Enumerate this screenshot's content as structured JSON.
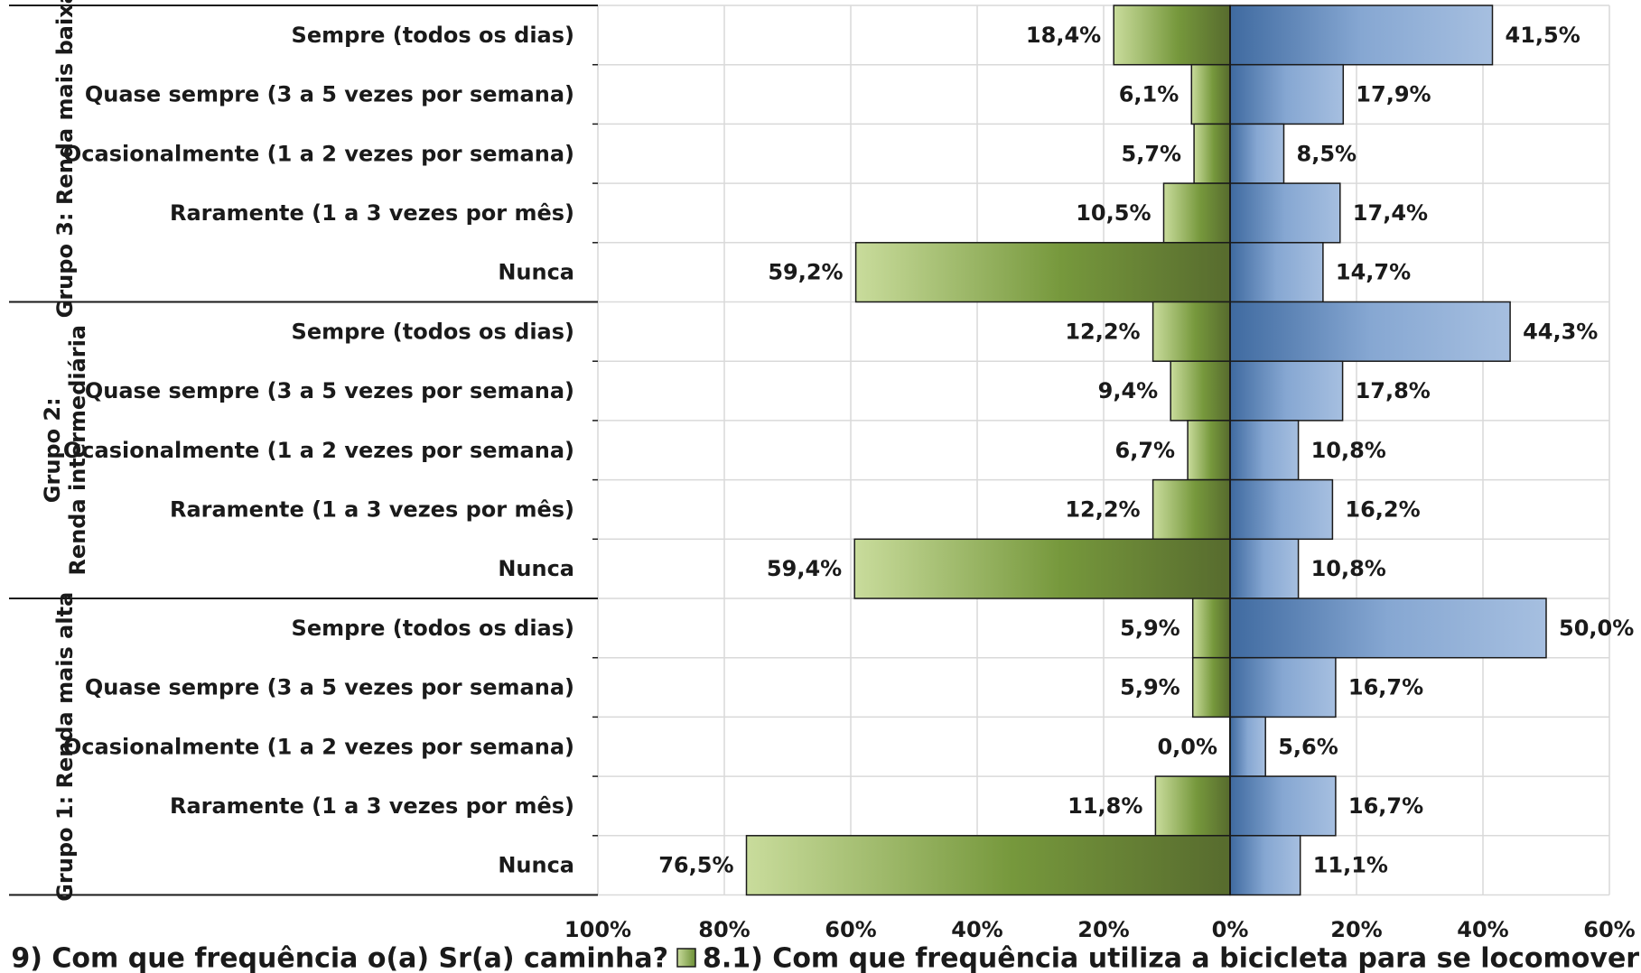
{
  "chart_data": {
    "type": "bar",
    "orientation": "horizontal-diverging",
    "xlim": [
      -100,
      60
    ],
    "grid": true,
    "legend_placement": "bottom",
    "x_ticks": [
      "100%",
      "80%",
      "60%",
      "40%",
      "20%",
      "0%",
      "20%",
      "40%",
      "60%"
    ],
    "groups": [
      {
        "label": "Grupo 3: Renda mais baixa",
        "categories": [
          "Sempre (todos os dias)",
          "Quase sempre (3 a 5 vezes por semana)",
          "Ocasionalmente (1 a 2 vezes por semana)",
          "Raramente (1 a 3 vezes por mês)",
          "Nunca"
        ]
      },
      {
        "label": "Grupo 2: Renda intermediária",
        "categories": [
          "Sempre (todos os dias)",
          "Quase sempre (3 a 5 vezes por semana)",
          "Ocasionalmente (1 a 2 vezes por semana)",
          "Raramente (1 a 3 vezes por mês)",
          "Nunca"
        ]
      },
      {
        "label": "Grupo 1: Renda mais alta",
        "categories": [
          "Sempre (todos os dias)",
          "Quase sempre (3 a 5 vezes por semana)",
          "Ocasionalmente (1 a 2 vezes por semana)",
          "Raramente (1 a 3 vezes por mês)",
          "Nunca"
        ]
      }
    ],
    "series": [
      {
        "name": "9) Com que frequência o(a) Sr(a) caminha?",
        "side": "left",
        "color": "#6b8e35",
        "values": [
          18.4,
          6.1,
          5.7,
          10.5,
          59.2,
          12.2,
          9.4,
          6.7,
          12.2,
          59.4,
          5.9,
          5.9,
          0.0,
          11.8,
          76.5
        ],
        "labels": [
          "18,4%",
          "6,1%",
          "5,7%",
          "10,5%",
          "59,2%",
          "12,2%",
          "9,4%",
          "6,7%",
          "12,2%",
          "59,4%",
          "5,9%",
          "5,9%",
          "0,0%",
          "11,8%",
          "76,5%"
        ]
      },
      {
        "name": "8.1) Com que frequência utiliza a bicicleta para se locomover?",
        "side": "right",
        "color": "#5b84b8",
        "values": [
          41.5,
          17.9,
          8.5,
          17.4,
          14.7,
          44.3,
          17.8,
          10.8,
          16.2,
          10.8,
          50.0,
          16.7,
          5.6,
          16.7,
          11.1
        ],
        "labels": [
          "41,5%",
          "17,9%",
          "8,5%",
          "17,4%",
          "14,7%",
          "44,3%",
          "17,8%",
          "10,8%",
          "16,2%",
          "10,8%",
          "50,0%",
          "16,7%",
          "5,6%",
          "16,7%",
          "11,1%"
        ]
      }
    ]
  }
}
